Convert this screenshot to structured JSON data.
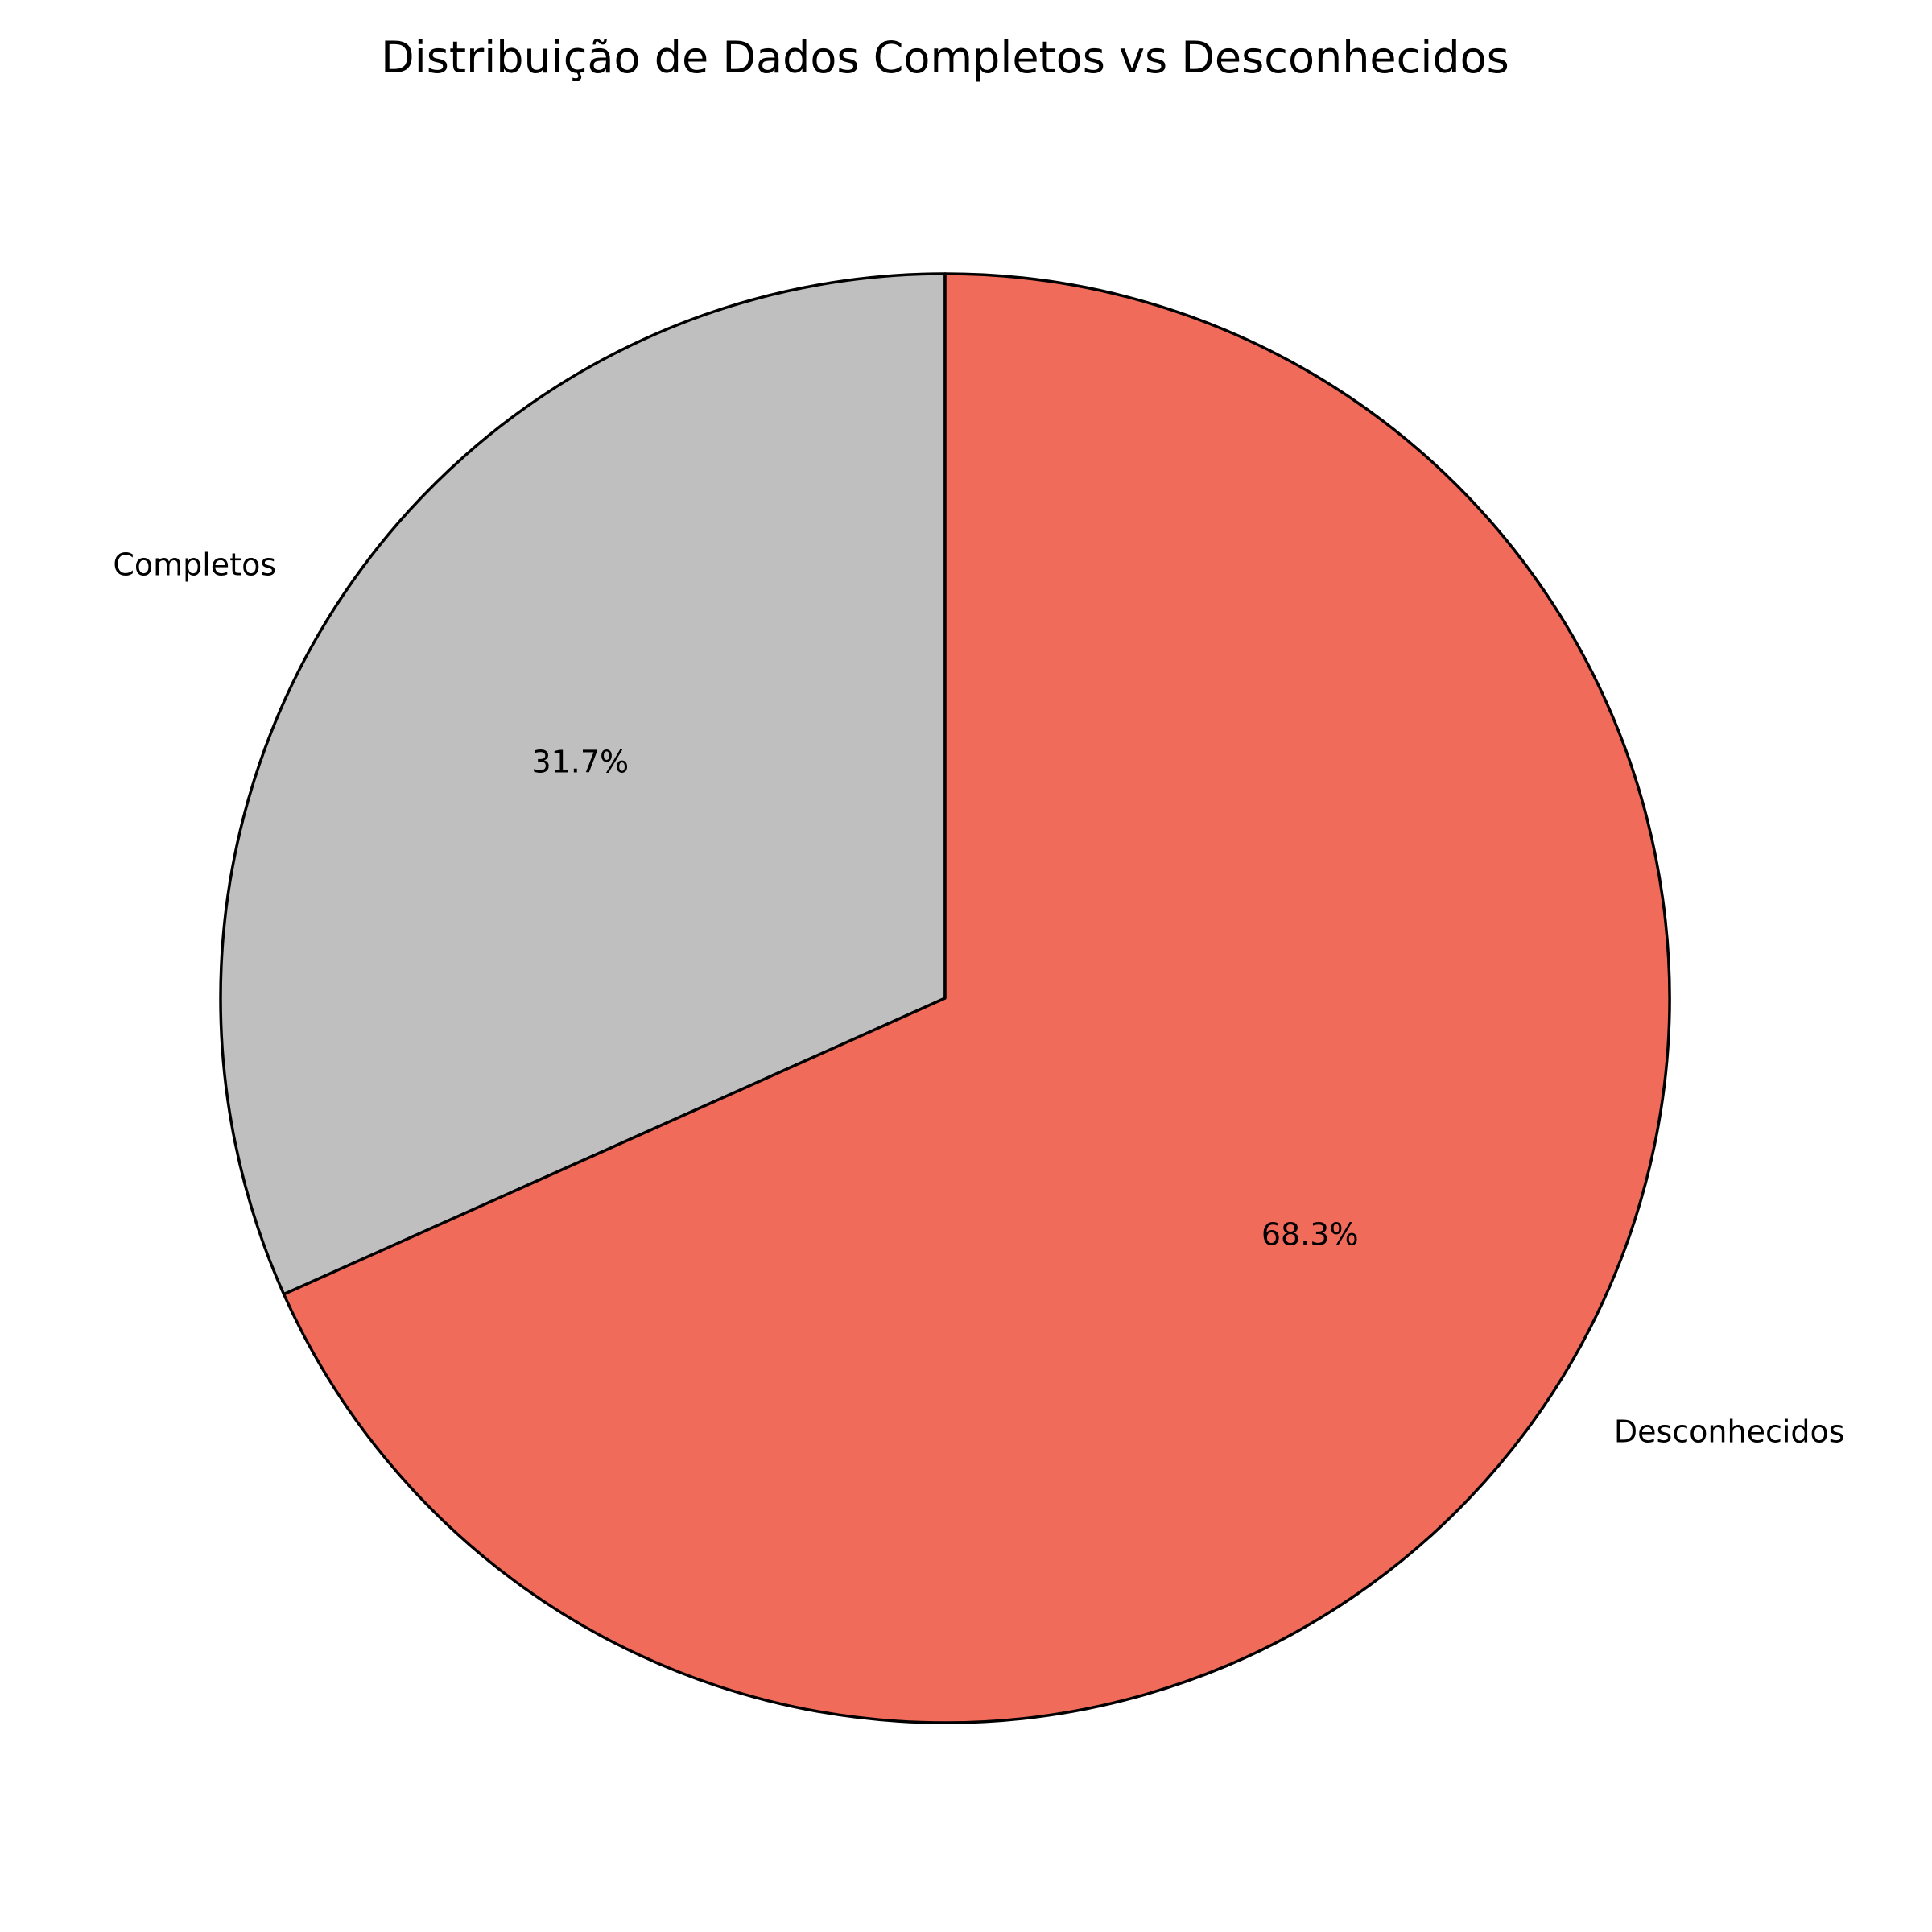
{
  "chart_data": {
    "type": "pie",
    "title": "Distribuição de Dados Completos vs Desconhecidos",
    "categories": [
      "Completos",
      "Desconhecidos"
    ],
    "values": [
      31.7,
      68.3
    ],
    "value_labels": [
      "31.7%",
      "68.3%"
    ],
    "colors": [
      "#bfbfbf",
      "#f06b5a"
    ],
    "edge_color": "#000000",
    "start_angle_deg": 90,
    "direction": "counterclockwise",
    "legend": "none"
  }
}
